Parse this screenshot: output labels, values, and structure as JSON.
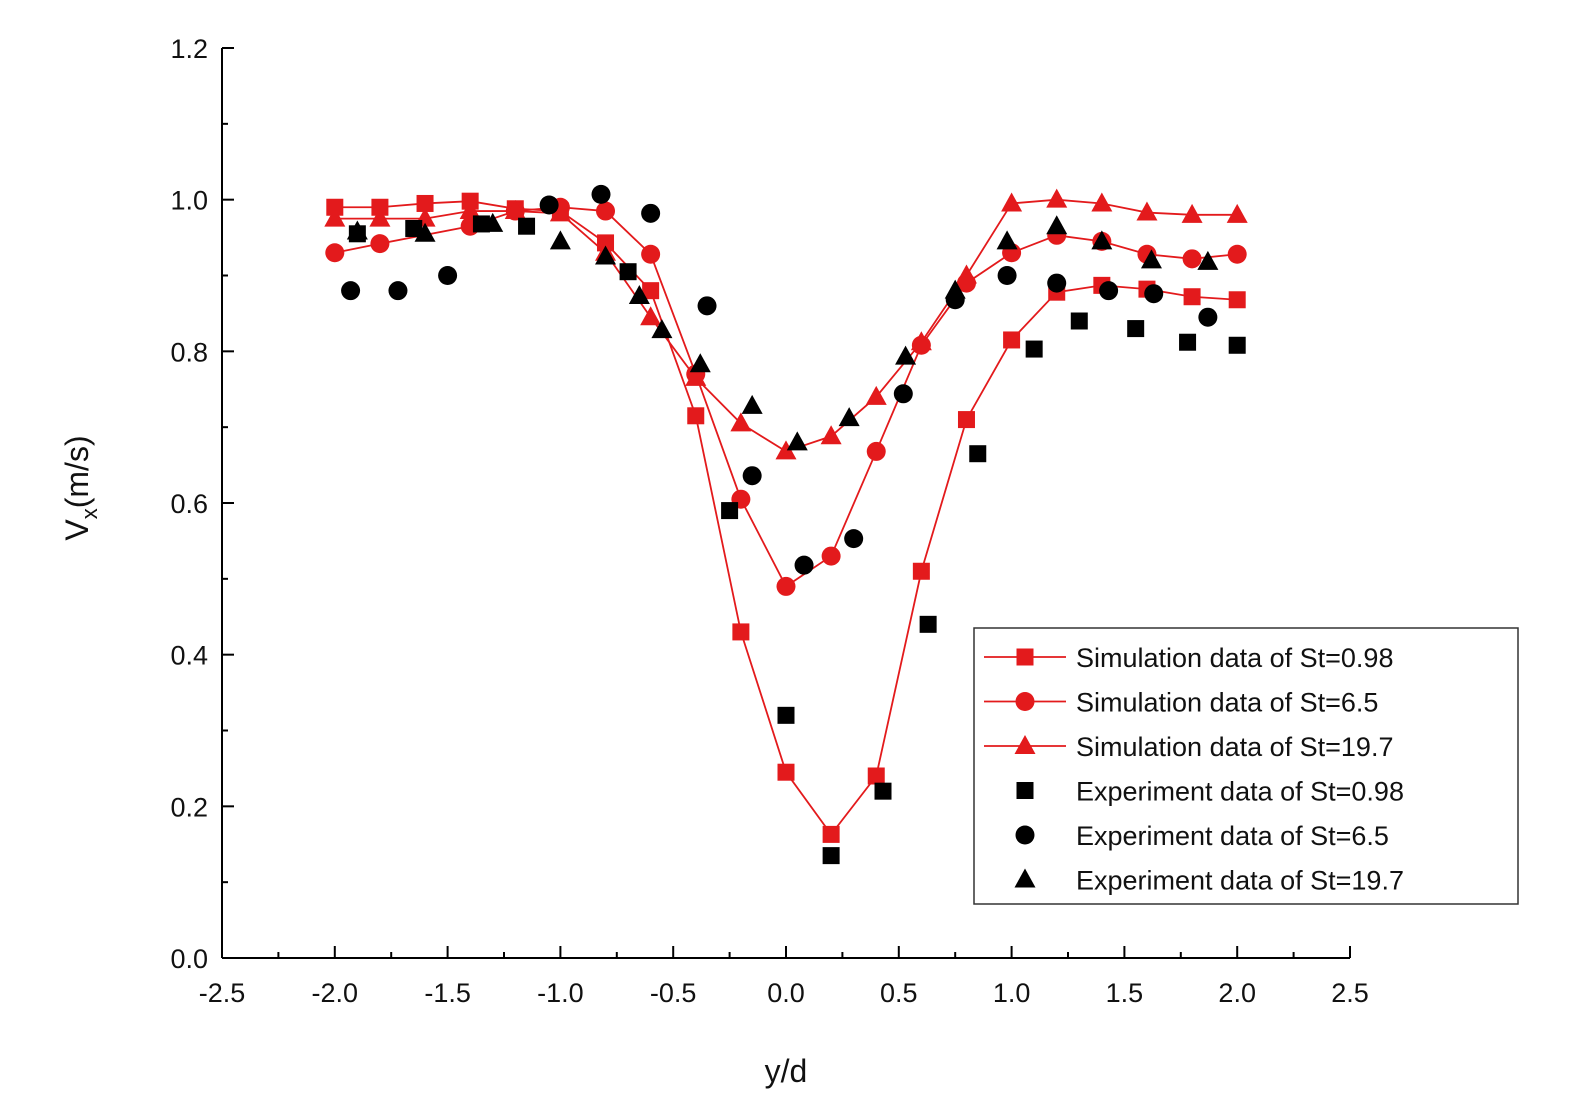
{
  "chart_data": {
    "type": "line",
    "title": "",
    "xlabel": "y/d",
    "ylabel_main": "V",
    "ylabel_sub": "x",
    "ylabel_unit": "(m/s)",
    "xlim": [
      -2.5,
      2.5
    ],
    "ylim": [
      0.0,
      1.2
    ],
    "x_ticks": [
      -2.5,
      -2.0,
      -1.5,
      -1.0,
      -0.5,
      0.0,
      0.5,
      1.0,
      1.5,
      2.0,
      2.5
    ],
    "x_tick_labels": [
      "-2.5",
      "-2.0",
      "-1.5",
      "-1.0",
      "-0.5",
      "0.0",
      "0.5",
      "1.0",
      "1.5",
      "2.0",
      "2.5"
    ],
    "y_ticks": [
      0.0,
      0.2,
      0.4,
      0.6,
      0.8,
      1.0,
      1.2
    ],
    "y_tick_labels": [
      "0.0",
      "0.2",
      "0.4",
      "0.6",
      "0.8",
      "1.0",
      "1.2"
    ],
    "grid": false,
    "legend_position": "bottom-right",
    "colors": {
      "simulation": "#e31a1c",
      "experiment": "#000000"
    },
    "series": [
      {
        "name": "Simulation data of St=0.98",
        "kind": "simulation",
        "marker": "square",
        "x": [
          -2.0,
          -1.8,
          -1.6,
          -1.4,
          -1.2,
          -1.0,
          -0.8,
          -0.6,
          -0.4,
          -0.2,
          0.0,
          0.2,
          0.4,
          0.6,
          0.8,
          1.0,
          1.2,
          1.4,
          1.6,
          1.8,
          2.0
        ],
        "y": [
          0.99,
          0.99,
          0.995,
          0.998,
          0.988,
          0.985,
          0.943,
          0.88,
          0.715,
          0.43,
          0.245,
          0.163,
          0.24,
          0.51,
          0.71,
          0.815,
          0.878,
          0.887,
          0.882,
          0.872,
          0.868
        ]
      },
      {
        "name": "Simulation data of St=6.5",
        "kind": "simulation",
        "marker": "circle",
        "x": [
          -2.0,
          -1.8,
          -1.4,
          -1.2,
          -1.0,
          -0.8,
          -0.6,
          -0.4,
          -0.2,
          0.0,
          0.2,
          0.4,
          0.6,
          0.8,
          1.0,
          1.2,
          1.4,
          1.6,
          1.8,
          2.0
        ],
        "y": [
          0.93,
          0.942,
          0.965,
          0.985,
          0.99,
          0.985,
          0.928,
          0.77,
          0.605,
          0.49,
          0.53,
          0.668,
          0.808,
          0.89,
          0.93,
          0.953,
          0.945,
          0.928,
          0.922,
          0.928
        ]
      },
      {
        "name": "Simulation data of St=19.7",
        "kind": "simulation",
        "marker": "triangle",
        "x": [
          -2.0,
          -1.8,
          -1.6,
          -1.4,
          -1.2,
          -1.0,
          -0.8,
          -0.6,
          -0.4,
          -0.2,
          0.0,
          0.2,
          0.4,
          0.6,
          0.8,
          1.0,
          1.2,
          1.4,
          1.6,
          1.8,
          2.0
        ],
        "y": [
          0.975,
          0.975,
          0.975,
          0.985,
          0.985,
          0.982,
          0.93,
          0.845,
          0.765,
          0.705,
          0.668,
          0.688,
          0.74,
          0.812,
          0.9,
          0.995,
          1.0,
          0.995,
          0.983,
          0.98,
          0.98
        ]
      },
      {
        "name": "Experiment data of St=0.98",
        "kind": "experiment",
        "marker": "square",
        "x": [
          -1.9,
          -1.65,
          -1.35,
          -1.15,
          -0.7,
          -0.25,
          0.0,
          0.2,
          0.43,
          0.63,
          0.85,
          1.1,
          1.3,
          1.55,
          1.78,
          2.0
        ],
        "y": [
          0.955,
          0.962,
          0.968,
          0.965,
          0.905,
          0.59,
          0.32,
          0.135,
          0.22,
          0.44,
          0.665,
          0.803,
          0.84,
          0.83,
          0.812,
          0.808
        ]
      },
      {
        "name": "Experiment data of St=6.5",
        "kind": "experiment",
        "marker": "circle",
        "x": [
          -1.93,
          -1.72,
          -1.5,
          -1.05,
          -0.82,
          -0.6,
          -0.35,
          -0.15,
          0.08,
          0.3,
          0.52,
          0.75,
          0.98,
          1.2,
          1.43,
          1.63,
          1.87
        ],
        "y": [
          0.88,
          0.88,
          0.9,
          0.993,
          1.007,
          0.982,
          0.86,
          0.636,
          0.518,
          0.553,
          0.744,
          0.868,
          0.9,
          0.89,
          0.88,
          0.876,
          0.845
        ]
      },
      {
        "name": "Experiment data of St=19.7",
        "kind": "experiment",
        "marker": "triangle",
        "x": [
          -1.9,
          -1.6,
          -1.3,
          -1.0,
          -0.8,
          -0.65,
          -0.55,
          -0.38,
          -0.15,
          0.05,
          0.28,
          0.53,
          0.75,
          0.98,
          1.2,
          1.4,
          1.62,
          1.87
        ],
        "y": [
          0.958,
          0.955,
          0.968,
          0.945,
          0.925,
          0.873,
          0.828,
          0.783,
          0.728,
          0.68,
          0.712,
          0.793,
          0.88,
          0.945,
          0.965,
          0.945,
          0.92,
          0.918
        ]
      }
    ]
  }
}
